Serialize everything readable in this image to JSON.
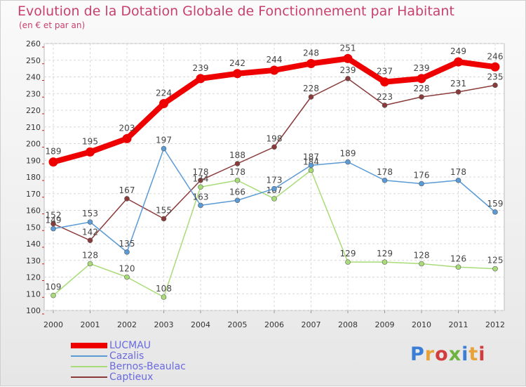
{
  "header": {
    "title": "Evolution de la Dotation Globale de Fonctionnement par Habitant",
    "subtitle": "(en € et par an)"
  },
  "brand": {
    "text": "Proxiti",
    "colors": [
      "#3a7fd5",
      "#e8a23a",
      "#d23c3c",
      "#6cb33f",
      "#3a7fd5",
      "#e8a23a",
      "#d23c3c"
    ]
  },
  "chart_data": {
    "type": "line",
    "title": "Evolution de la Dotation Globale de Fonctionnement par Habitant",
    "subtitle": "(en € et par an)",
    "x": [
      "2000",
      "2001",
      "2002",
      "2003",
      "2004",
      "2005",
      "2006",
      "2007",
      "2008",
      "2009",
      "2010",
      "2011",
      "2012"
    ],
    "ylim": [
      100,
      260
    ],
    "yticks": [
      100,
      110,
      120,
      130,
      140,
      150,
      160,
      170,
      180,
      190,
      200,
      210,
      220,
      230,
      240,
      250,
      260
    ],
    "grid": true,
    "legend_position": "bottom-left",
    "series": [
      {
        "name": "LUCMAU",
        "color": "#ee0000",
        "values": [
          189,
          195,
          203,
          224,
          239,
          242,
          244,
          248,
          251,
          237,
          239,
          249,
          246
        ]
      },
      {
        "name": "Cazalis",
        "color": "#5a9ad5",
        "values": [
          149,
          153,
          135,
          197,
          163,
          166,
          173,
          187,
          189,
          178,
          176,
          178,
          159
        ]
      },
      {
        "name": "Bernos-Beaulac",
        "color": "#a8dc78",
        "values": [
          109,
          128,
          120,
          108,
          174,
          178,
          167,
          184,
          129,
          129,
          128,
          126,
          125
        ]
      },
      {
        "name": "Captieux",
        "color": "#8b3a3a",
        "values": [
          152,
          142,
          167,
          155,
          178,
          188,
          198,
          228,
          239,
          223,
          228,
          231,
          235
        ]
      }
    ]
  }
}
